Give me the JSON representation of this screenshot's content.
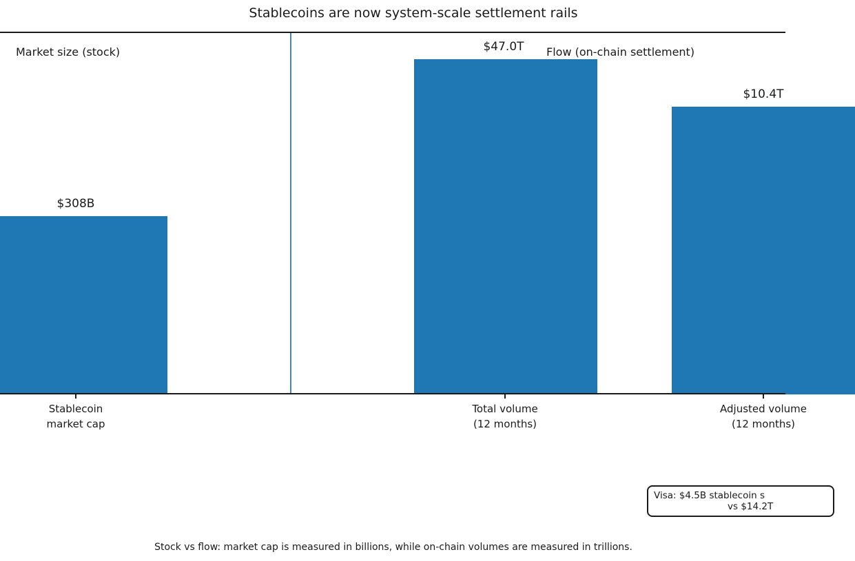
{
  "chart_data": {
    "type": "bar",
    "title": "Stablecoins are now system-scale settlement rails",
    "group_labels": [
      "Market size (stock)",
      "Flow (on-chain settlement)"
    ],
    "categories": [
      "Stablecoin market cap",
      "Total volume (12 months)",
      "Adjusted volume (12 months)"
    ],
    "tick_labels": [
      [
        "Stablecoin",
        "market cap"
      ],
      [
        "Total volume",
        "(12 months)"
      ],
      [
        "Adjusted volume",
        "(12 months)"
      ]
    ],
    "values_usd": [
      308000000000,
      47000000000000,
      10400000000000
    ],
    "value_labels": [
      "$308B",
      "$47.0T",
      "$10.4T"
    ],
    "yscale": "log",
    "ylim_usd": [
      1000000000,
      110000000000000
    ],
    "grid": false,
    "legend": "none",
    "bar_color": "#1f77b4",
    "divider_color": "#4682b4",
    "annotation_lines": [
      "Visa: $4.5B stablecoin s",
      "vs $14.2T"
    ],
    "footnote": "Stock vs flow: market cap is measured in billions, while on-chain volumes are measured in trillions."
  }
}
